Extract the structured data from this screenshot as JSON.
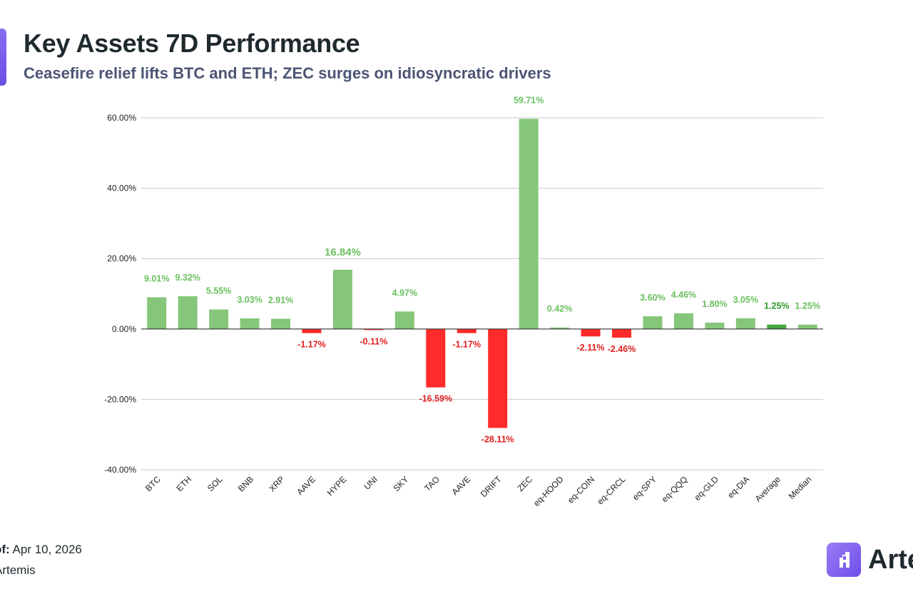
{
  "header": {
    "title": "Key Assets 7D Performance",
    "subtitle": "Ceasefire relief lifts BTC and ETH; ZEC surges on idiosyncratic drivers"
  },
  "footer": {
    "as_of_label": "of:",
    "as_of_value": "Apr 10, 2026",
    "source": "Artemis"
  },
  "brand": {
    "name": "Arte",
    "icon": "artemis-logo-icon"
  },
  "colors": {
    "positive": "#85c67a",
    "negative": "#ff2a2a",
    "highlight": "#44a63a",
    "positive_label": "#6abf5e",
    "negative_label": "#e01e1e",
    "highlight_label": "#2e9a2e",
    "accent": "#7a5cf0"
  },
  "chart_data": {
    "type": "bar",
    "title": "Key Assets 7D Performance",
    "xlabel": "",
    "ylabel": "",
    "ylim": [
      -40,
      60
    ],
    "yticks": [
      60,
      40,
      20,
      0,
      -20,
      -40
    ],
    "ytick_labels": [
      "60.00%",
      "40.00%",
      "20.00%",
      "0.00%",
      "-20.00%",
      "-40.00%"
    ],
    "grid": true,
    "categories": [
      "BTC",
      "ETH",
      "SOL",
      "BNB",
      "XRP",
      "AAVE",
      "HYPE",
      "UNI",
      "SKY",
      "TAO",
      "AAVE",
      "DRIFT",
      "ZEC",
      "eq-HOOD",
      "eq-COIN",
      "eq-CRCL",
      "eq-SPY",
      "eq-QQQ",
      "eq-GLD",
      "eq-DIA",
      "Average",
      "Median"
    ],
    "values": [
      9.01,
      9.32,
      5.55,
      3.03,
      2.91,
      -1.17,
      16.84,
      -0.11,
      4.97,
      -16.59,
      -1.17,
      -28.11,
      59.71,
      0.42,
      -2.11,
      -2.46,
      3.6,
      4.46,
      1.8,
      3.05,
      1.25,
      1.25
    ],
    "data_labels": [
      "9.01%",
      "9.32%",
      "5.55%",
      "3.03%",
      "2.91%",
      "-1.17%",
      "16.84%",
      "-0.11%",
      "4.97%",
      "-16.59%",
      "-1.17%",
      "-28.11%",
      "59.71%",
      "0.42%",
      "-2.11%",
      "-2.46%",
      "3.60%",
      "4.46%",
      "1.80%",
      "3.05%",
      "1.25%",
      "1.25%"
    ],
    "highlight_index": 20,
    "large_label_index": 6
  }
}
